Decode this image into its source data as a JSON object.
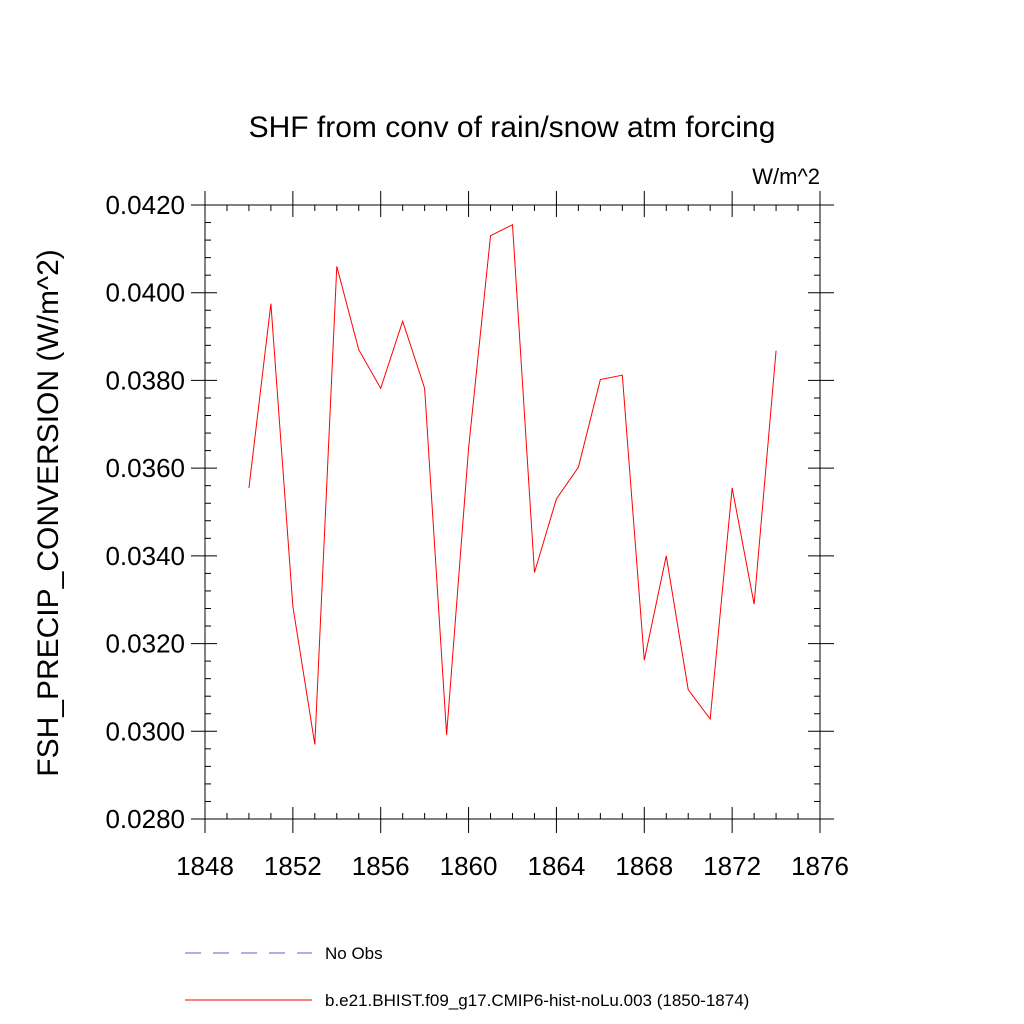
{
  "chart_data": {
    "type": "line",
    "title": "SHF from conv of rain/snow atm forcing",
    "units_label": "W/m^2",
    "ylabel": "FSH_PRECIP_CONVERSION  (W/m^2)",
    "xlabel": "",
    "xlim": [
      1848,
      1876
    ],
    "ylim": [
      0.028,
      0.042
    ],
    "x_ticks": [
      1848,
      1852,
      1856,
      1860,
      1864,
      1868,
      1872,
      1876
    ],
    "x_tick_labels": [
      "1848",
      "1852",
      "1856",
      "1860",
      "1864",
      "1868",
      "1872",
      "1876"
    ],
    "y_ticks": [
      0.028,
      0.03,
      0.032,
      0.034,
      0.036,
      0.038,
      0.04,
      0.042
    ],
    "y_tick_labels": [
      "0.0280",
      "0.0300",
      "0.0320",
      "0.0340",
      "0.0360",
      "0.0380",
      "0.0400",
      "0.0420"
    ],
    "grid": false,
    "legend_position": "bottom",
    "series": [
      {
        "name": "No Obs",
        "style": "dashed",
        "color": "#6a5acd",
        "x": [],
        "values": []
      },
      {
        "name": "b.e21.BHIST.f09_g17.CMIP6-hist-noLu.003 (1850-1874)",
        "style": "solid",
        "color": "#ff0000",
        "x": [
          1850,
          1851,
          1852,
          1853,
          1854,
          1855,
          1856,
          1857,
          1858,
          1859,
          1860,
          1861,
          1862,
          1863,
          1864,
          1865,
          1866,
          1867,
          1868,
          1869,
          1870,
          1871,
          1872,
          1873,
          1874
        ],
        "values": [
          0.03555,
          0.03975,
          0.03285,
          0.0297,
          0.0406,
          0.0387,
          0.03782,
          0.03935,
          0.03782,
          0.02992,
          0.03645,
          0.0413,
          0.04155,
          0.03362,
          0.0353,
          0.03602,
          0.03802,
          0.03812,
          0.03162,
          0.034,
          0.03095,
          0.03028,
          0.03555,
          0.0329,
          0.03868
        ]
      }
    ]
  }
}
